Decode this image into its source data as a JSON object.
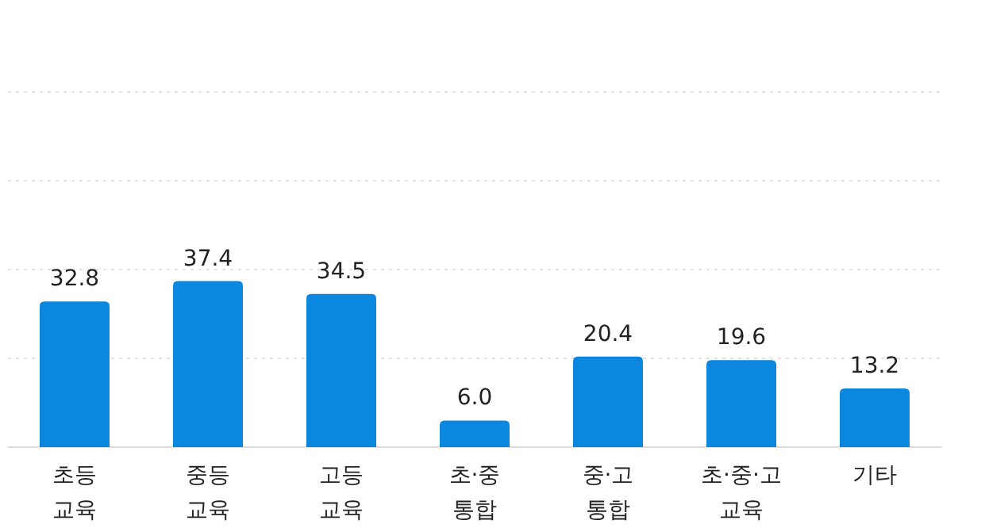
{
  "chart_data": {
    "type": "bar",
    "categories": [
      "초등\n교육",
      "중등\n교육",
      "고등\n교육",
      "초·중\n통합",
      "중·고\n통합",
      "초·중·고\n교육",
      "기타"
    ],
    "values": [
      32.8,
      37.4,
      34.5,
      6.0,
      20.4,
      19.6,
      13.2
    ],
    "color": "#0b87e0",
    "value_labels": [
      "32.8",
      "37.4",
      "34.5",
      "6.0",
      "20.4",
      "19.6",
      "13.2"
    ],
    "ylim": [
      0,
      80
    ],
    "yticks": [
      {
        "value": 0,
        "label": null
      },
      {
        "value": 20,
        "label": null
      },
      {
        "value": 40,
        "label": null
      },
      {
        "value": 60,
        "label": null
      },
      {
        "value": 80,
        "label": null
      }
    ],
    "tick_labels": "x",
    "grid": "y"
  }
}
